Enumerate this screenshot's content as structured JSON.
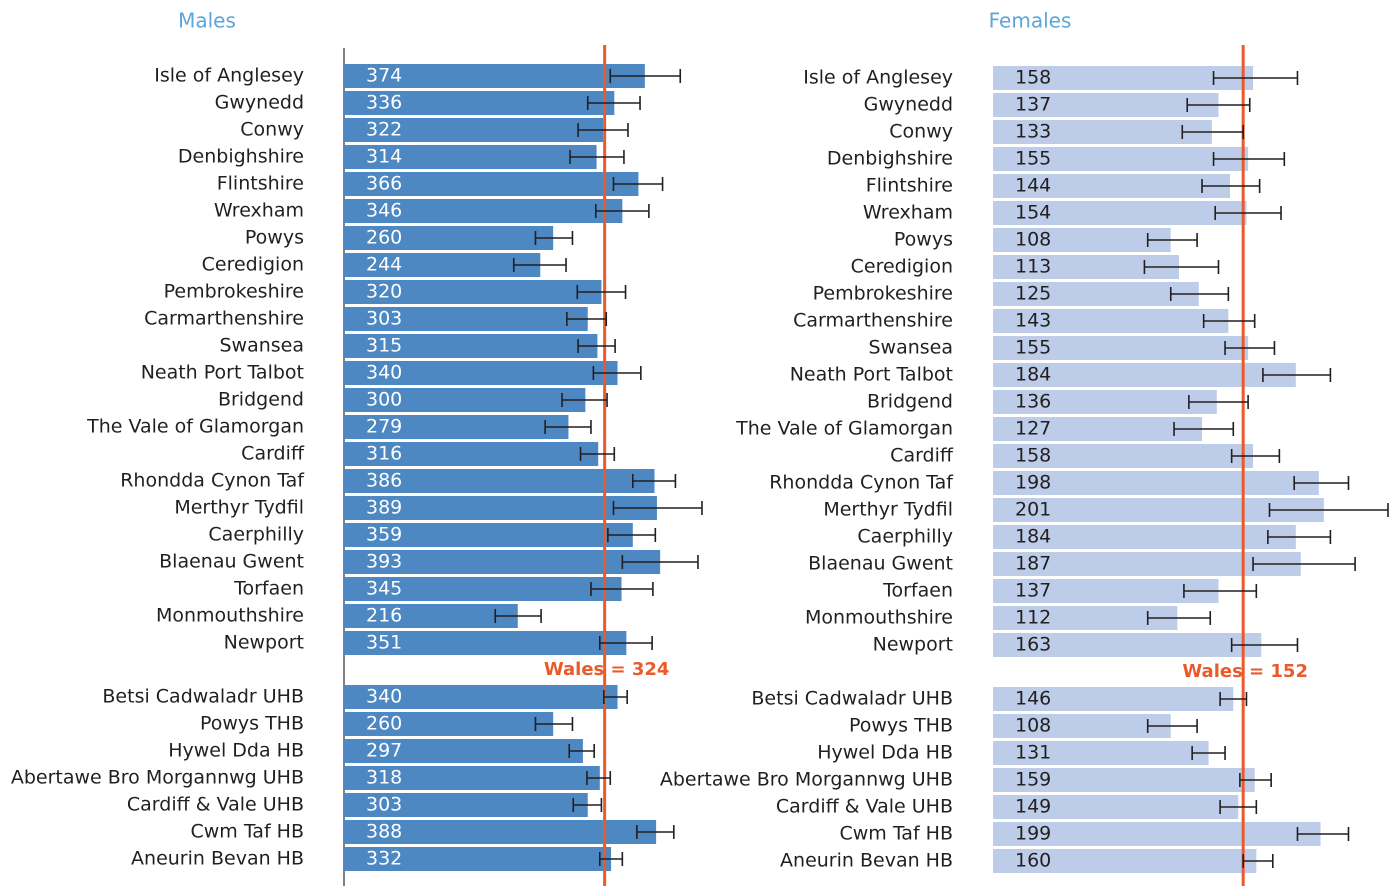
{
  "chart_data": [
    {
      "type": "bar",
      "title": "Males",
      "color": "#4d88c2",
      "reference_color": "#ea5a2a",
      "categories": [
        "Isle of Anglesey",
        "Gwynedd",
        "Conwy",
        "Denbighshire",
        "Flintshire",
        "Wrexham",
        "Powys",
        "Ceredigion",
        "Pembrokeshire",
        "Carmarthenshire",
        "Swansea",
        "Neath Port Talbot",
        "Bridgend",
        "The Vale of Glamorgan",
        "Cardiff",
        "Rhondda Cynon Taf",
        "Merthyr Tydfil",
        "Caerphilly",
        "Blaenau Gwent",
        "Torfaen",
        "Monmouthshire",
        "Newport",
        "Betsi Cadwaladr UHB",
        "Powys THB",
        "Hywel Dda HB",
        "Abertawe Bro Morgannwg UHB",
        "Cardiff & Vale UHB",
        "Cwm Taf HB",
        "Aneurin Bevan HB"
      ],
      "values": [
        374,
        336,
        322,
        314,
        366,
        346,
        260,
        244,
        320,
        303,
        315,
        340,
        300,
        279,
        316,
        386,
        389,
        359,
        393,
        345,
        216,
        351,
        340,
        260,
        297,
        318,
        303,
        388,
        332
      ],
      "ci_low": [
        331,
        303,
        291,
        281,
        335,
        313,
        238,
        211,
        290,
        277,
        291,
        310,
        271,
        250,
        294,
        359,
        335,
        328,
        346,
        307,
        188,
        318,
        323,
        238,
        280,
        302,
        285,
        364,
        318
      ],
      "ci_high": [
        418,
        368,
        353,
        348,
        396,
        379,
        284,
        276,
        350,
        326,
        337,
        369,
        327,
        307,
        336,
        412,
        445,
        387,
        440,
        384,
        245,
        383,
        352,
        284,
        311,
        331,
        320,
        410,
        346
      ],
      "reference": {
        "value": 324,
        "label": "Wales = 324"
      },
      "xlim": [
        0,
        450
      ]
    },
    {
      "type": "bar",
      "title": "Females",
      "color": "#bdcde9",
      "reference_color": "#ea5a2a",
      "categories": [
        "Isle of Anglesey",
        "Gwynedd",
        "Conwy",
        "Denbighshire",
        "Flintshire",
        "Wrexham",
        "Powys",
        "Ceredigion",
        "Pembrokeshire",
        "Carmarthenshire",
        "Swansea",
        "Neath Port Talbot",
        "Bridgend",
        "The Vale of Glamorgan",
        "Cardiff",
        "Rhondda Cynon Taf",
        "Merthyr Tydfil",
        "Caerphilly",
        "Blaenau Gwent",
        "Torfaen",
        "Monmouthshire",
        "Newport",
        "Betsi Cadwaladr UHB",
        "Powys THB",
        "Hywel Dda HB",
        "Abertawe Bro Morgannwg UHB",
        "Cardiff & Vale UHB",
        "Cwm Taf HB",
        "Aneurin Bevan HB"
      ],
      "values": [
        158,
        137,
        133,
        155,
        144,
        154,
        108,
        113,
        125,
        143,
        155,
        184,
        136,
        127,
        158,
        198,
        201,
        184,
        187,
        137,
        112,
        163,
        146,
        108,
        131,
        159,
        149,
        199,
        160
      ],
      "ci_low": [
        134,
        118,
        115,
        134,
        127,
        135,
        94,
        92,
        108,
        128,
        141,
        164,
        119,
        110,
        145,
        183,
        168,
        167,
        158,
        116,
        94,
        145,
        138,
        94,
        121,
        150,
        138,
        185,
        152
      ],
      "ci_high": [
        185,
        156,
        152,
        177,
        162,
        175,
        124,
        137,
        143,
        159,
        171,
        205,
        155,
        146,
        174,
        216,
        240,
        205,
        220,
        160,
        132,
        185,
        154,
        124,
        141,
        169,
        160,
        216,
        170
      ],
      "reference": {
        "value": 152,
        "label": "Wales = 152"
      },
      "xlim": [
        0,
        240
      ]
    }
  ]
}
